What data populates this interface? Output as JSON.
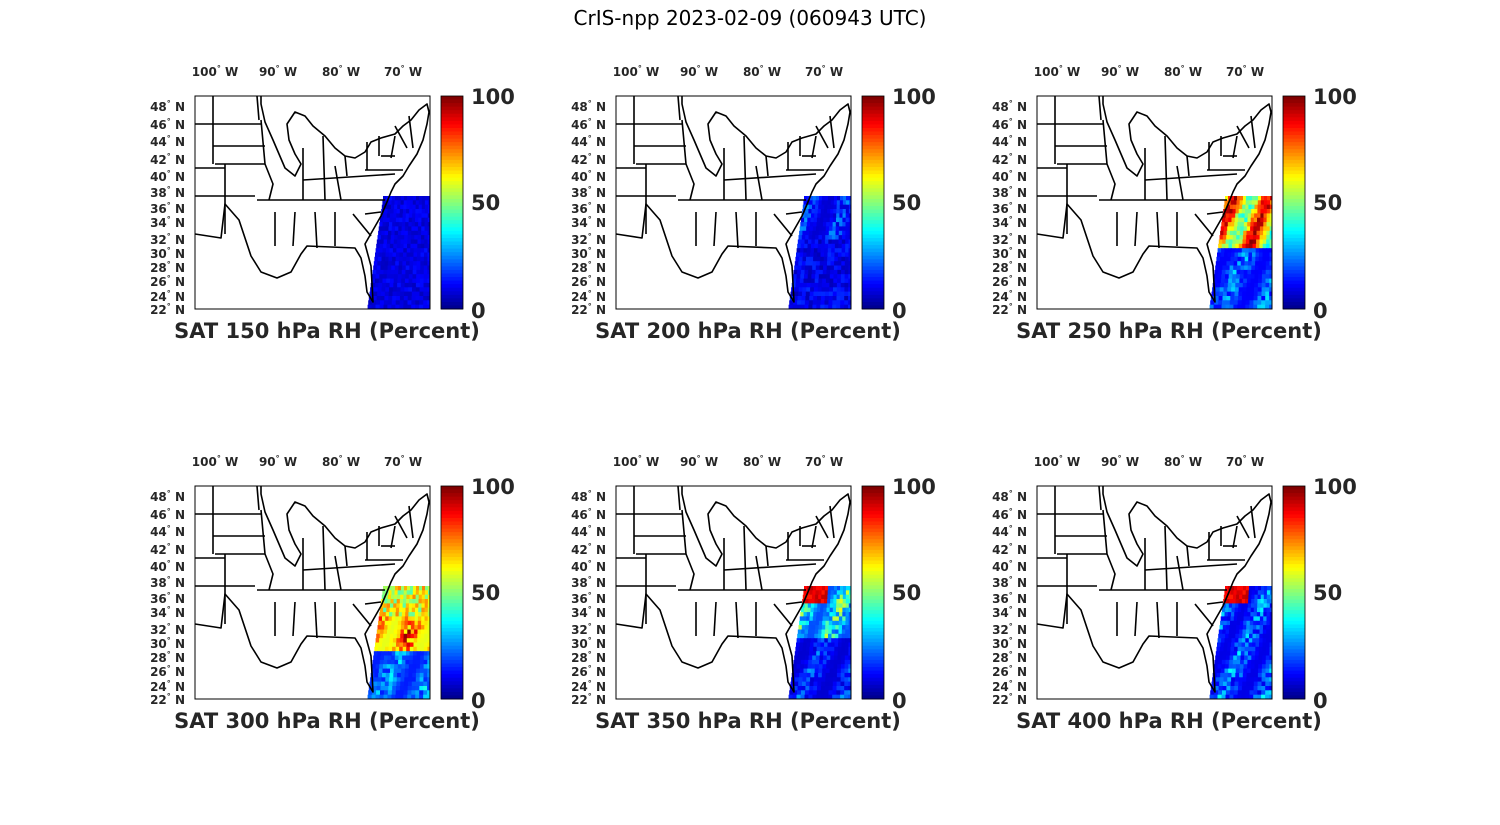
{
  "figure": {
    "title": "CrIS-npp 2023-02-09 (060943 UTC)"
  },
  "map": {
    "lon_labels": [
      "100",
      "90",
      "80",
      "70"
    ],
    "lon_suffix": "W",
    "lat_labels": [
      "48",
      "46",
      "44",
      "42",
      "40",
      "38",
      "36",
      "34",
      "32",
      "30",
      "28",
      "26",
      "24",
      "22"
    ],
    "lat_suffix": "N",
    "degree_symbol": "°",
    "colorbar_ticks": [
      "100",
      "50",
      "0"
    ],
    "colormap": "jet"
  },
  "panels": [
    {
      "title": "SAT 150 hPa RH (Percent)",
      "pattern": "dry"
    },
    {
      "title": "SAT 200 hPa RH (Percent)",
      "pattern": "dry2"
    },
    {
      "title": "SAT 250 hPa RH (Percent)",
      "pattern": "moist"
    },
    {
      "title": "SAT 300 hPa RH (Percent)",
      "pattern": "moist2"
    },
    {
      "title": "SAT 350 hPa RH (Percent)",
      "pattern": "mid"
    },
    {
      "title": "SAT 400 hPa RH (Percent)",
      "pattern": "low"
    }
  ]
}
